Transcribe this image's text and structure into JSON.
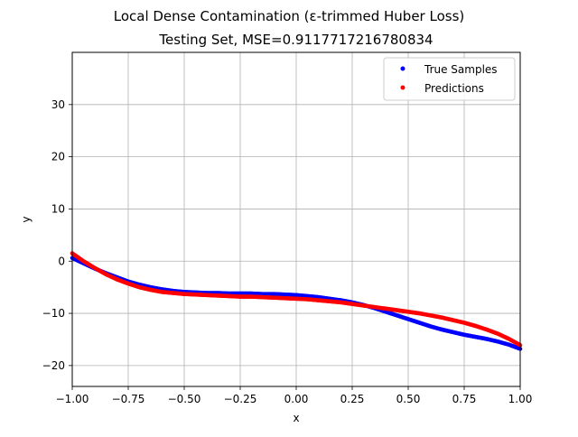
{
  "chart_data": {
    "type": "scatter",
    "title": "Local Dense Contamination (ε-trimmed Huber Loss)",
    "subtitle": "Testing Set, MSE=0.9117717216780834",
    "xlabel": "x",
    "ylabel": "y",
    "xlim": [
      -1.0,
      1.0
    ],
    "ylim": [
      -24,
      40
    ],
    "xticks": [
      -1.0,
      -0.75,
      -0.5,
      -0.25,
      0.0,
      0.25,
      0.5,
      0.75,
      1.0
    ],
    "xtick_labels": [
      "−1.00",
      "−0.75",
      "−0.50",
      "−0.25",
      "0.00",
      "0.25",
      "0.50",
      "0.75",
      "1.00"
    ],
    "yticks": [
      -20,
      -10,
      0,
      10,
      20,
      30
    ],
    "ytick_labels": [
      "−20",
      "−10",
      "0",
      "10",
      "20",
      "30"
    ],
    "grid": true,
    "legend_position": "top-right",
    "series": [
      {
        "name": "True Samples",
        "color": "#0000ff",
        "x": [
          -1.0,
          -0.95,
          -0.9,
          -0.85,
          -0.8,
          -0.75,
          -0.7,
          -0.65,
          -0.6,
          -0.55,
          -0.5,
          -0.45,
          -0.4,
          -0.35,
          -0.3,
          -0.25,
          -0.2,
          -0.15,
          -0.1,
          -0.05,
          0.0,
          0.05,
          0.1,
          0.15,
          0.2,
          0.25,
          0.3,
          0.35,
          0.4,
          0.45,
          0.5,
          0.55,
          0.6,
          0.65,
          0.7,
          0.75,
          0.8,
          0.85,
          0.9,
          0.95,
          1.0
        ],
        "y": [
          0.6,
          -0.4,
          -1.4,
          -2.3,
          -3.1,
          -3.9,
          -4.5,
          -5.0,
          -5.4,
          -5.7,
          -5.9,
          -6.0,
          -6.1,
          -6.1,
          -6.2,
          -6.2,
          -6.2,
          -6.3,
          -6.3,
          -6.4,
          -6.5,
          -6.7,
          -6.9,
          -7.2,
          -7.5,
          -7.9,
          -8.4,
          -9.0,
          -9.7,
          -10.4,
          -11.1,
          -11.8,
          -12.5,
          -13.1,
          -13.6,
          -14.1,
          -14.5,
          -14.9,
          -15.4,
          -16.0,
          -16.8
        ]
      },
      {
        "name": "Predictions",
        "color": "#ff0000",
        "x": [
          -1.0,
          -0.95,
          -0.9,
          -0.85,
          -0.8,
          -0.75,
          -0.7,
          -0.65,
          -0.6,
          -0.55,
          -0.5,
          -0.45,
          -0.4,
          -0.35,
          -0.3,
          -0.25,
          -0.2,
          -0.15,
          -0.1,
          -0.05,
          0.0,
          0.05,
          0.1,
          0.15,
          0.2,
          0.25,
          0.3,
          0.35,
          0.4,
          0.45,
          0.5,
          0.55,
          0.6,
          0.65,
          0.7,
          0.75,
          0.8,
          0.85,
          0.9,
          0.95,
          1.0
        ],
        "y": [
          1.5,
          0.0,
          -1.3,
          -2.5,
          -3.5,
          -4.3,
          -5.0,
          -5.5,
          -5.9,
          -6.1,
          -6.3,
          -6.4,
          -6.5,
          -6.6,
          -6.7,
          -6.8,
          -6.8,
          -6.9,
          -7.0,
          -7.1,
          -7.2,
          -7.3,
          -7.5,
          -7.7,
          -7.9,
          -8.2,
          -8.5,
          -8.8,
          -9.1,
          -9.4,
          -9.7,
          -10.0,
          -10.4,
          -10.8,
          -11.3,
          -11.8,
          -12.4,
          -13.1,
          -13.9,
          -14.9,
          -16.1
        ]
      }
    ]
  }
}
